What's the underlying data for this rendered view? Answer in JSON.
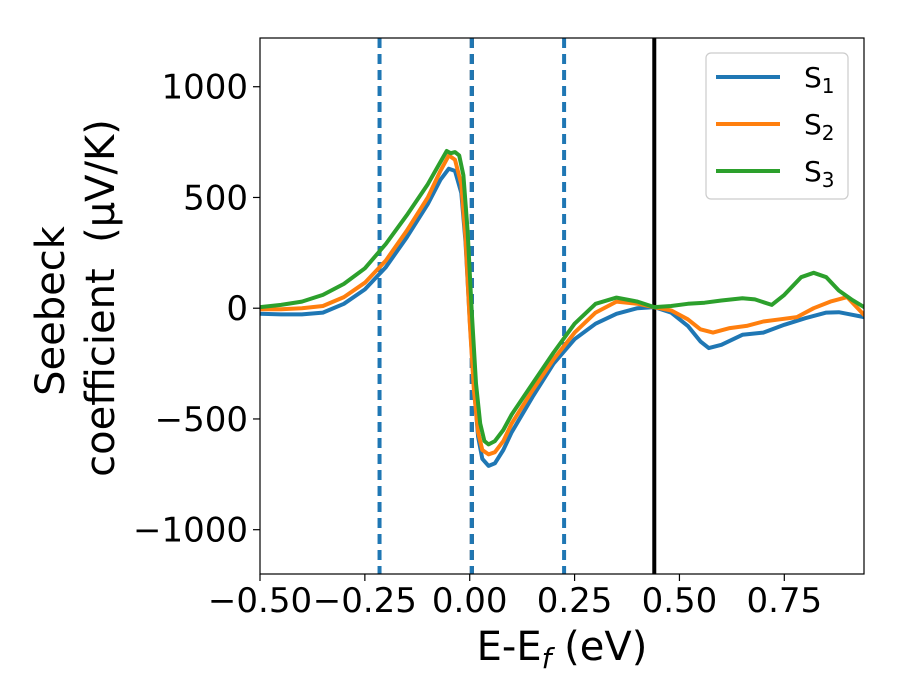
{
  "chart_data": {
    "type": "line",
    "xlabel_parts": [
      "E-E",
      "f",
      " (eV)"
    ],
    "ylabel_lines": [
      "Seebeck",
      "coefficient  (μV/K)"
    ],
    "xlim": [
      -0.5,
      0.94
    ],
    "ylim": [
      -1200,
      1220
    ],
    "xticks": [
      -0.5,
      -0.25,
      0.0,
      0.25,
      0.5,
      0.75
    ],
    "xtick_labels": [
      "−0.50",
      "−0.25",
      "0.00",
      "0.25",
      "0.50",
      "0.75"
    ],
    "yticks": [
      -1000,
      -500,
      0,
      500,
      1000
    ],
    "ytick_labels": [
      "−1000",
      "−500",
      "0",
      "500",
      "1000"
    ],
    "legend_position": "top-right",
    "vlines": [
      {
        "x": -0.215,
        "style": "dashed",
        "color": "#1f77b4"
      },
      {
        "x": 0.005,
        "style": "dashed",
        "color": "#000000"
      },
      {
        "x": 0.005,
        "style": "dashed",
        "color": "#1f77b4"
      },
      {
        "x": 0.225,
        "style": "dashed",
        "color": "#1f77b4"
      },
      {
        "x": 0.44,
        "style": "solid",
        "color": "#000000"
      }
    ],
    "series": [
      {
        "name": "S1",
        "label_main": "S",
        "label_sub": "1",
        "color": "#1f77b4",
        "points": [
          [
            -0.5,
            -25
          ],
          [
            -0.45,
            -28
          ],
          [
            -0.4,
            -28
          ],
          [
            -0.35,
            -20
          ],
          [
            -0.3,
            20
          ],
          [
            -0.25,
            85
          ],
          [
            -0.2,
            185
          ],
          [
            -0.15,
            320
          ],
          [
            -0.1,
            470
          ],
          [
            -0.07,
            580
          ],
          [
            -0.05,
            630
          ],
          [
            -0.035,
            620
          ],
          [
            -0.02,
            520
          ],
          [
            -0.01,
            300
          ],
          [
            0.0,
            -50
          ],
          [
            0.01,
            -350
          ],
          [
            0.02,
            -580
          ],
          [
            0.03,
            -680
          ],
          [
            0.045,
            -712
          ],
          [
            0.06,
            -700
          ],
          [
            0.08,
            -640
          ],
          [
            0.1,
            -560
          ],
          [
            0.15,
            -400
          ],
          [
            0.2,
            -250
          ],
          [
            0.25,
            -140
          ],
          [
            0.3,
            -70
          ],
          [
            0.35,
            -25
          ],
          [
            0.4,
            0
          ],
          [
            0.44,
            5
          ],
          [
            0.48,
            -20
          ],
          [
            0.52,
            -80
          ],
          [
            0.55,
            -150
          ],
          [
            0.57,
            -180
          ],
          [
            0.6,
            -165
          ],
          [
            0.65,
            -120
          ],
          [
            0.7,
            -110
          ],
          [
            0.75,
            -75
          ],
          [
            0.8,
            -45
          ],
          [
            0.85,
            -20
          ],
          [
            0.88,
            -18
          ],
          [
            0.9,
            -25
          ],
          [
            0.94,
            -40
          ]
        ]
      },
      {
        "name": "S2",
        "label_main": "S",
        "label_sub": "2",
        "color": "#ff7f0e",
        "points": [
          [
            -0.5,
            -5
          ],
          [
            -0.45,
            -5
          ],
          [
            -0.4,
            0
          ],
          [
            -0.35,
            10
          ],
          [
            -0.3,
            50
          ],
          [
            -0.25,
            115
          ],
          [
            -0.2,
            215
          ],
          [
            -0.15,
            350
          ],
          [
            -0.1,
            500
          ],
          [
            -0.07,
            620
          ],
          [
            -0.05,
            690
          ],
          [
            -0.035,
            670
          ],
          [
            -0.02,
            560
          ],
          [
            -0.01,
            320
          ],
          [
            0.0,
            -60
          ],
          [
            0.01,
            -370
          ],
          [
            0.02,
            -560
          ],
          [
            0.03,
            -640
          ],
          [
            0.045,
            -660
          ],
          [
            0.06,
            -650
          ],
          [
            0.08,
            -600
          ],
          [
            0.1,
            -520
          ],
          [
            0.15,
            -370
          ],
          [
            0.2,
            -230
          ],
          [
            0.25,
            -110
          ],
          [
            0.3,
            -20
          ],
          [
            0.35,
            30
          ],
          [
            0.4,
            20
          ],
          [
            0.44,
            5
          ],
          [
            0.48,
            -10
          ],
          [
            0.52,
            -50
          ],
          [
            0.55,
            -95
          ],
          [
            0.58,
            -110
          ],
          [
            0.62,
            -90
          ],
          [
            0.66,
            -80
          ],
          [
            0.7,
            -60
          ],
          [
            0.74,
            -50
          ],
          [
            0.78,
            -40
          ],
          [
            0.82,
            0
          ],
          [
            0.86,
            30
          ],
          [
            0.9,
            50
          ],
          [
            0.94,
            -30
          ]
        ]
      },
      {
        "name": "S3",
        "label_main": "S",
        "label_sub": "3",
        "color": "#2ca02c",
        "points": [
          [
            -0.5,
            5
          ],
          [
            -0.45,
            15
          ],
          [
            -0.4,
            30
          ],
          [
            -0.35,
            60
          ],
          [
            -0.3,
            110
          ],
          [
            -0.25,
            180
          ],
          [
            -0.2,
            290
          ],
          [
            -0.15,
            420
          ],
          [
            -0.1,
            560
          ],
          [
            -0.07,
            660
          ],
          [
            -0.055,
            710
          ],
          [
            -0.045,
            700
          ],
          [
            -0.035,
            705
          ],
          [
            -0.025,
            690
          ],
          [
            -0.015,
            600
          ],
          [
            -0.005,
            350
          ],
          [
            0.005,
            -20
          ],
          [
            0.015,
            -340
          ],
          [
            0.025,
            -520
          ],
          [
            0.035,
            -600
          ],
          [
            0.045,
            -615
          ],
          [
            0.06,
            -600
          ],
          [
            0.08,
            -550
          ],
          [
            0.1,
            -480
          ],
          [
            0.15,
            -340
          ],
          [
            0.2,
            -200
          ],
          [
            0.25,
            -70
          ],
          [
            0.3,
            20
          ],
          [
            0.35,
            48
          ],
          [
            0.4,
            30
          ],
          [
            0.44,
            5
          ],
          [
            0.48,
            10
          ],
          [
            0.52,
            20
          ],
          [
            0.56,
            25
          ],
          [
            0.6,
            35
          ],
          [
            0.65,
            45
          ],
          [
            0.68,
            40
          ],
          [
            0.72,
            15
          ],
          [
            0.75,
            60
          ],
          [
            0.79,
            140
          ],
          [
            0.82,
            160
          ],
          [
            0.85,
            140
          ],
          [
            0.88,
            80
          ],
          [
            0.91,
            40
          ],
          [
            0.94,
            5
          ]
        ]
      }
    ]
  }
}
